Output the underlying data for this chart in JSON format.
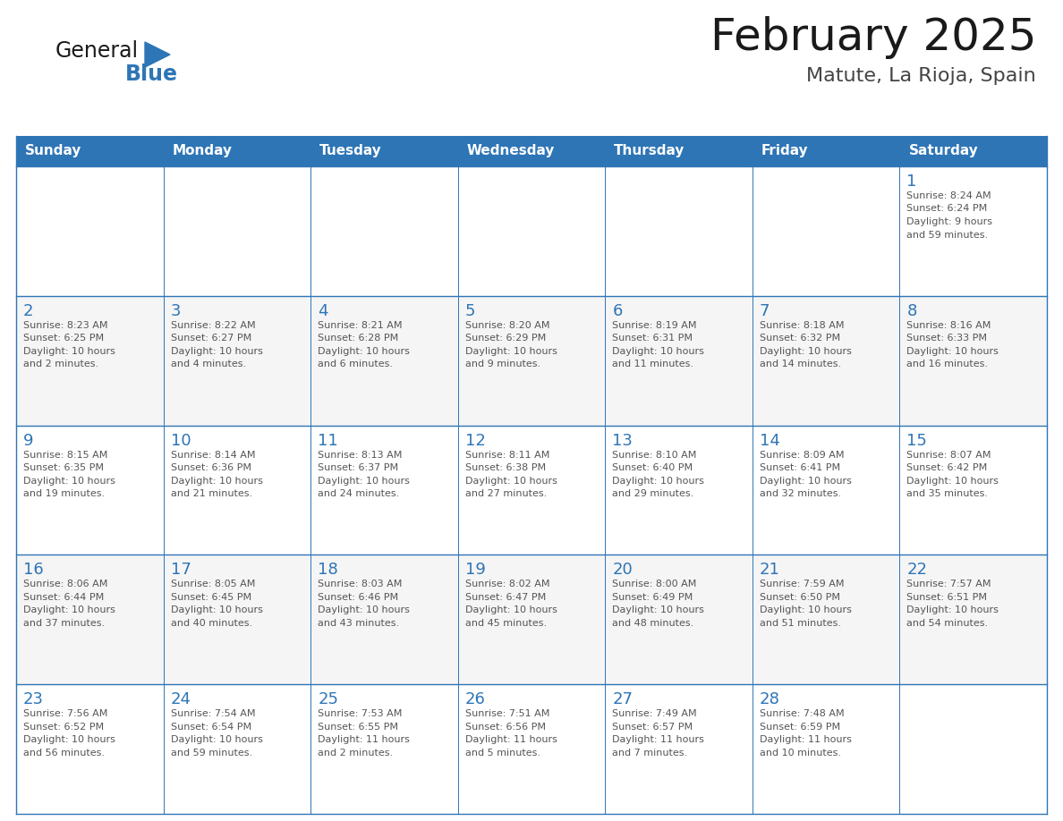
{
  "title": "February 2025",
  "subtitle": "Matute, La Rioja, Spain",
  "header_bg_color": "#2E75B6",
  "header_text_color": "#FFFFFF",
  "cell_bg_color": "#FFFFFF",
  "grid_line_color": "#2E75B6",
  "day_number_color": "#2E75B6",
  "cell_text_color": "#555555",
  "alt_row_color": "#F2F2F2",
  "days_of_week": [
    "Sunday",
    "Monday",
    "Tuesday",
    "Wednesday",
    "Thursday",
    "Friday",
    "Saturday"
  ],
  "weeks": [
    [
      {
        "day": "",
        "info": ""
      },
      {
        "day": "",
        "info": ""
      },
      {
        "day": "",
        "info": ""
      },
      {
        "day": "",
        "info": ""
      },
      {
        "day": "",
        "info": ""
      },
      {
        "day": "",
        "info": ""
      },
      {
        "day": "1",
        "info": "Sunrise: 8:24 AM\nSunset: 6:24 PM\nDaylight: 9 hours\nand 59 minutes."
      }
    ],
    [
      {
        "day": "2",
        "info": "Sunrise: 8:23 AM\nSunset: 6:25 PM\nDaylight: 10 hours\nand 2 minutes."
      },
      {
        "day": "3",
        "info": "Sunrise: 8:22 AM\nSunset: 6:27 PM\nDaylight: 10 hours\nand 4 minutes."
      },
      {
        "day": "4",
        "info": "Sunrise: 8:21 AM\nSunset: 6:28 PM\nDaylight: 10 hours\nand 6 minutes."
      },
      {
        "day": "5",
        "info": "Sunrise: 8:20 AM\nSunset: 6:29 PM\nDaylight: 10 hours\nand 9 minutes."
      },
      {
        "day": "6",
        "info": "Sunrise: 8:19 AM\nSunset: 6:31 PM\nDaylight: 10 hours\nand 11 minutes."
      },
      {
        "day": "7",
        "info": "Sunrise: 8:18 AM\nSunset: 6:32 PM\nDaylight: 10 hours\nand 14 minutes."
      },
      {
        "day": "8",
        "info": "Sunrise: 8:16 AM\nSunset: 6:33 PM\nDaylight: 10 hours\nand 16 minutes."
      }
    ],
    [
      {
        "day": "9",
        "info": "Sunrise: 8:15 AM\nSunset: 6:35 PM\nDaylight: 10 hours\nand 19 minutes."
      },
      {
        "day": "10",
        "info": "Sunrise: 8:14 AM\nSunset: 6:36 PM\nDaylight: 10 hours\nand 21 minutes."
      },
      {
        "day": "11",
        "info": "Sunrise: 8:13 AM\nSunset: 6:37 PM\nDaylight: 10 hours\nand 24 minutes."
      },
      {
        "day": "12",
        "info": "Sunrise: 8:11 AM\nSunset: 6:38 PM\nDaylight: 10 hours\nand 27 minutes."
      },
      {
        "day": "13",
        "info": "Sunrise: 8:10 AM\nSunset: 6:40 PM\nDaylight: 10 hours\nand 29 minutes."
      },
      {
        "day": "14",
        "info": "Sunrise: 8:09 AM\nSunset: 6:41 PM\nDaylight: 10 hours\nand 32 minutes."
      },
      {
        "day": "15",
        "info": "Sunrise: 8:07 AM\nSunset: 6:42 PM\nDaylight: 10 hours\nand 35 minutes."
      }
    ],
    [
      {
        "day": "16",
        "info": "Sunrise: 8:06 AM\nSunset: 6:44 PM\nDaylight: 10 hours\nand 37 minutes."
      },
      {
        "day": "17",
        "info": "Sunrise: 8:05 AM\nSunset: 6:45 PM\nDaylight: 10 hours\nand 40 minutes."
      },
      {
        "day": "18",
        "info": "Sunrise: 8:03 AM\nSunset: 6:46 PM\nDaylight: 10 hours\nand 43 minutes."
      },
      {
        "day": "19",
        "info": "Sunrise: 8:02 AM\nSunset: 6:47 PM\nDaylight: 10 hours\nand 45 minutes."
      },
      {
        "day": "20",
        "info": "Sunrise: 8:00 AM\nSunset: 6:49 PM\nDaylight: 10 hours\nand 48 minutes."
      },
      {
        "day": "21",
        "info": "Sunrise: 7:59 AM\nSunset: 6:50 PM\nDaylight: 10 hours\nand 51 minutes."
      },
      {
        "day": "22",
        "info": "Sunrise: 7:57 AM\nSunset: 6:51 PM\nDaylight: 10 hours\nand 54 minutes."
      }
    ],
    [
      {
        "day": "23",
        "info": "Sunrise: 7:56 AM\nSunset: 6:52 PM\nDaylight: 10 hours\nand 56 minutes."
      },
      {
        "day": "24",
        "info": "Sunrise: 7:54 AM\nSunset: 6:54 PM\nDaylight: 10 hours\nand 59 minutes."
      },
      {
        "day": "25",
        "info": "Sunrise: 7:53 AM\nSunset: 6:55 PM\nDaylight: 11 hours\nand 2 minutes."
      },
      {
        "day": "26",
        "info": "Sunrise: 7:51 AM\nSunset: 6:56 PM\nDaylight: 11 hours\nand 5 minutes."
      },
      {
        "day": "27",
        "info": "Sunrise: 7:49 AM\nSunset: 6:57 PM\nDaylight: 11 hours\nand 7 minutes."
      },
      {
        "day": "28",
        "info": "Sunrise: 7:48 AM\nSunset: 6:59 PM\nDaylight: 11 hours\nand 10 minutes."
      },
      {
        "day": "",
        "info": ""
      }
    ]
  ],
  "logo_text_general": "General",
  "logo_text_blue": "Blue",
  "logo_triangle_color": "#2E75B6",
  "title_fontsize": 36,
  "subtitle_fontsize": 16,
  "header_fontsize": 11,
  "day_num_fontsize": 13,
  "cell_text_fontsize": 8
}
